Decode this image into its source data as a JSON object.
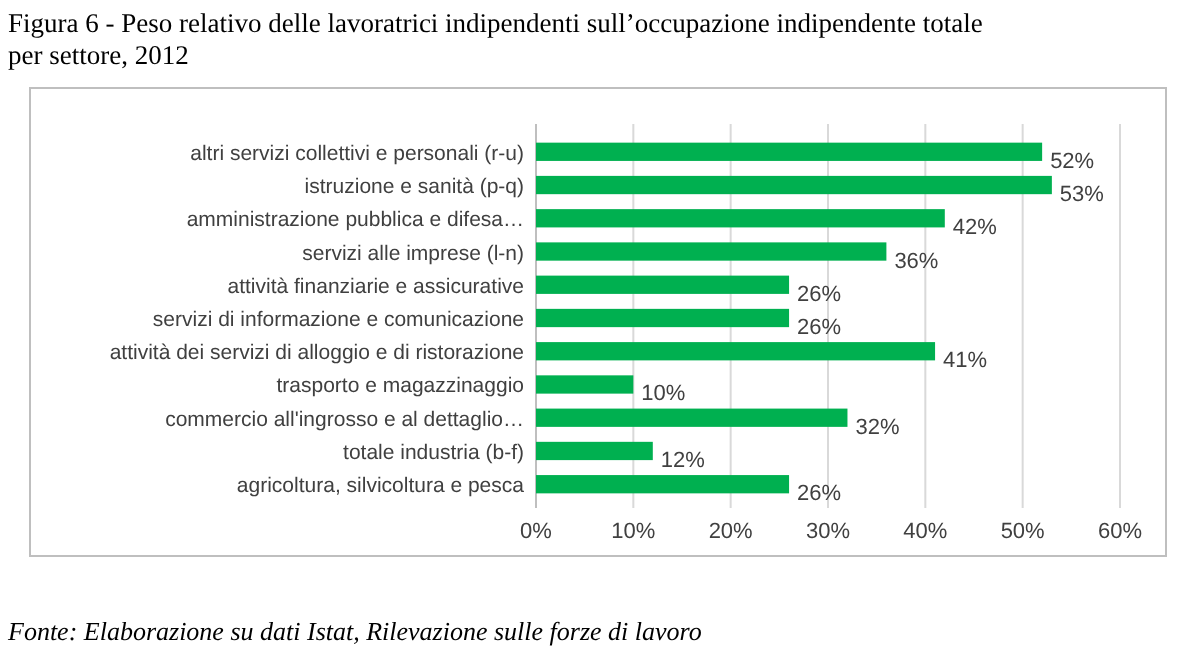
{
  "chart_data": {
    "type": "bar",
    "orientation": "horizontal",
    "title": "Figura 6 - Peso relativo delle lavoratrici indipendenti sull’occupazione indipendente totale per settore, 2012",
    "categories": [
      "altri servizi collettivi e personali (r-u)",
      "istruzione e sanità (p-q)",
      "amministrazione pubblica e difesa…",
      "servizi alle imprese (l-n)",
      "attività finanziarie e assicurative",
      "servizi di informazione e comunicazione",
      "attività dei servizi di alloggio e di ristorazione",
      "trasporto e magazzinaggio",
      "commercio all'ingrosso e al dettaglio…",
      "totale industria (b-f)",
      "agricoltura, silvicoltura e pesca"
    ],
    "values": [
      52,
      53,
      42,
      36,
      26,
      26,
      41,
      10,
      32,
      12,
      26
    ],
    "value_labels": [
      "52%",
      "53%",
      "42%",
      "36%",
      "26%",
      "26%",
      "41%",
      "10%",
      "32%",
      "12%",
      "26%"
    ],
    "color": "#00b050",
    "xlim": [
      0,
      60
    ],
    "xticks": [
      {
        "value": 0,
        "label": "0%"
      },
      {
        "value": 10,
        "label": "10%"
      },
      {
        "value": 20,
        "label": "20%"
      },
      {
        "value": 30,
        "label": "30%"
      },
      {
        "value": 40,
        "label": "40%"
      },
      {
        "value": 50,
        "label": "50%"
      },
      {
        "value": 60,
        "label": "60%"
      }
    ],
    "grid": "x",
    "annotations": [
      "Fonte: Elaborazione su dati Istat, Rilevazione sulle forze di lavoro"
    ]
  }
}
